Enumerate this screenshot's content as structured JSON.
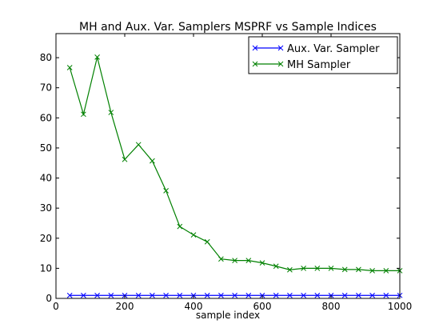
{
  "chart_data": {
    "type": "line",
    "title": "MH and Aux. Var. Samplers MSPRF vs Sample Indices",
    "xlabel": "sample index",
    "ylabel": "",
    "xlim": [
      0,
      1000
    ],
    "ylim": [
      0,
      88
    ],
    "xticks": [
      0,
      200,
      400,
      600,
      800,
      1000
    ],
    "yticks": [
      0,
      10,
      20,
      30,
      40,
      50,
      60,
      70,
      80
    ],
    "grid": false,
    "legend_position": "top-right",
    "x": [
      40,
      80,
      120,
      160,
      200,
      240,
      280,
      320,
      360,
      400,
      440,
      480,
      520,
      560,
      600,
      640,
      680,
      720,
      760,
      800,
      840,
      880,
      920,
      960,
      1000
    ],
    "series": [
      {
        "name": "Aux. Var. Sampler",
        "color": "#0000ff",
        "marker": "x",
        "values": [
          1,
          1,
          1,
          1,
          1,
          1,
          1,
          1,
          1,
          1,
          1,
          1,
          1,
          1,
          1,
          1,
          1,
          1,
          1,
          1,
          1,
          1,
          1,
          1,
          1
        ]
      },
      {
        "name": "MH Sampler",
        "color": "#008000",
        "marker": "x",
        "values": [
          76.7,
          61.2,
          80.2,
          61.8,
          46.2,
          51.1,
          45.7,
          35.8,
          23.9,
          21.1,
          18.8,
          13.1,
          12.6,
          12.6,
          11.8,
          10.7,
          9.5,
          10.0,
          10.0,
          10.0,
          9.6,
          9.6,
          9.2,
          9.2,
          9.2
        ]
      }
    ]
  }
}
